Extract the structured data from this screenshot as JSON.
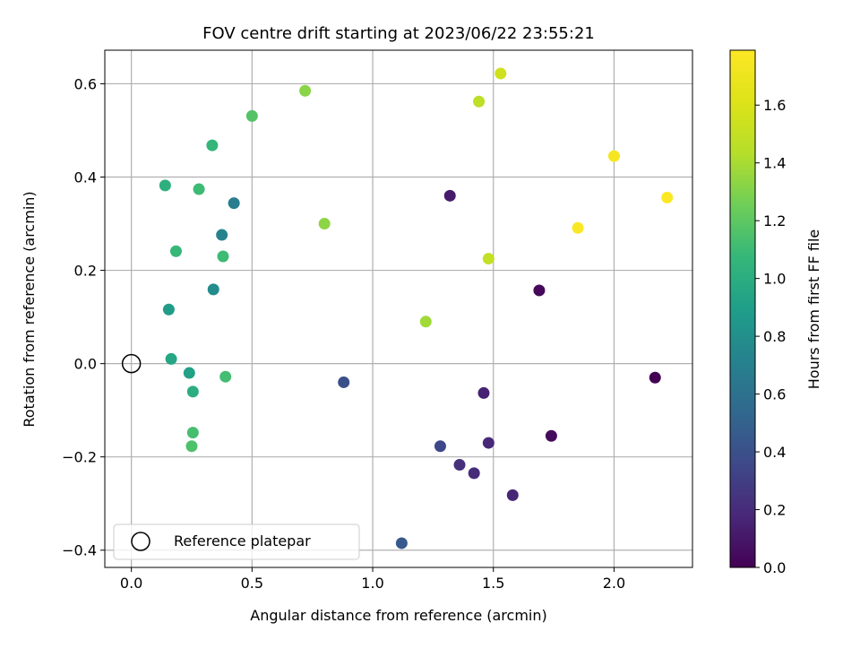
{
  "chart_data": {
    "type": "scatter",
    "title": "FOV centre drift starting at 2023/06/22 23:55:21",
    "xlabel": "Angular distance from reference (arcmin)",
    "ylabel": "Rotation from reference (arcmin)",
    "colorbar_label": "Hours from first FF file",
    "xlim": [
      -0.11,
      2.325
    ],
    "ylim": [
      -0.437,
      0.672
    ],
    "x_ticks": [
      0.0,
      0.5,
      1.0,
      1.5,
      2.0
    ],
    "x_tick_labels": [
      "0.0",
      "0.5",
      "1.0",
      "1.5",
      "2.0"
    ],
    "y_ticks": [
      -0.4,
      -0.2,
      0.0,
      0.2,
      0.4,
      0.6
    ],
    "y_tick_labels": [
      "−0.4",
      "−0.2",
      "0.0",
      "0.2",
      "0.4",
      "0.6"
    ],
    "colorbar_range": [
      0.0,
      1.79
    ],
    "colorbar_ticks": [
      0.0,
      0.2,
      0.4,
      0.6,
      0.8,
      1.0,
      1.2,
      1.4,
      1.6
    ],
    "colorbar_tick_labels": [
      "0.0",
      "0.2",
      "0.4",
      "0.6",
      "0.8",
      "1.0",
      "1.2",
      "1.4",
      "1.6"
    ],
    "colormap": "viridis",
    "grid": true,
    "legend_position": "lower-left",
    "legend": [
      {
        "label": "Reference platepar",
        "marker": "open-circle"
      }
    ],
    "reference_point": {
      "x": 0.0,
      "y": 0.0
    },
    "points": [
      {
        "x": 2.17,
        "y": -0.03,
        "hours": 0.0
      },
      {
        "x": 1.69,
        "y": 0.157,
        "hours": 0.03
      },
      {
        "x": 1.74,
        "y": -0.155,
        "hours": 0.05
      },
      {
        "x": 1.32,
        "y": 0.36,
        "hours": 0.12
      },
      {
        "x": 1.46,
        "y": -0.063,
        "hours": 0.15
      },
      {
        "x": 1.58,
        "y": -0.282,
        "hours": 0.17
      },
      {
        "x": 1.48,
        "y": -0.17,
        "hours": 0.18
      },
      {
        "x": 1.42,
        "y": -0.235,
        "hours": 0.2
      },
      {
        "x": 1.36,
        "y": -0.217,
        "hours": 0.22
      },
      {
        "x": 1.28,
        "y": -0.177,
        "hours": 0.35
      },
      {
        "x": 0.88,
        "y": -0.04,
        "hours": 0.4
      },
      {
        "x": 1.12,
        "y": -0.385,
        "hours": 0.45
      },
      {
        "x": 0.425,
        "y": 0.344,
        "hours": 0.68
      },
      {
        "x": 0.375,
        "y": 0.276,
        "hours": 0.72
      },
      {
        "x": 0.34,
        "y": 0.159,
        "hours": 0.78
      },
      {
        "x": 0.155,
        "y": 0.116,
        "hours": 0.88
      },
      {
        "x": 0.165,
        "y": 0.01,
        "hours": 0.95
      },
      {
        "x": 0.24,
        "y": -0.02,
        "hours": 0.92
      },
      {
        "x": 0.255,
        "y": -0.06,
        "hours": 1.0
      },
      {
        "x": 0.14,
        "y": 0.382,
        "hours": 1.02
      },
      {
        "x": 0.335,
        "y": 0.468,
        "hours": 1.07
      },
      {
        "x": 0.185,
        "y": 0.241,
        "hours": 1.08
      },
      {
        "x": 0.38,
        "y": 0.23,
        "hours": 1.1
      },
      {
        "x": 0.28,
        "y": 0.374,
        "hours": 1.1
      },
      {
        "x": 0.39,
        "y": -0.028,
        "hours": 1.12
      },
      {
        "x": 0.255,
        "y": -0.148,
        "hours": 1.13
      },
      {
        "x": 0.25,
        "y": -0.177,
        "hours": 1.15
      },
      {
        "x": 0.5,
        "y": 0.531,
        "hours": 1.17
      },
      {
        "x": 0.72,
        "y": 0.585,
        "hours": 1.32
      },
      {
        "x": 0.8,
        "y": 0.3,
        "hours": 1.33
      },
      {
        "x": 1.22,
        "y": 0.09,
        "hours": 1.38
      },
      {
        "x": 1.44,
        "y": 0.562,
        "hours": 1.47
      },
      {
        "x": 1.48,
        "y": 0.225,
        "hours": 1.5
      },
      {
        "x": 1.53,
        "y": 0.622,
        "hours": 1.55
      },
      {
        "x": 1.85,
        "y": 0.291,
        "hours": 1.77
      },
      {
        "x": 2.0,
        "y": 0.445,
        "hours": 1.75
      },
      {
        "x": 2.22,
        "y": 0.356,
        "hours": 1.78
      }
    ]
  }
}
